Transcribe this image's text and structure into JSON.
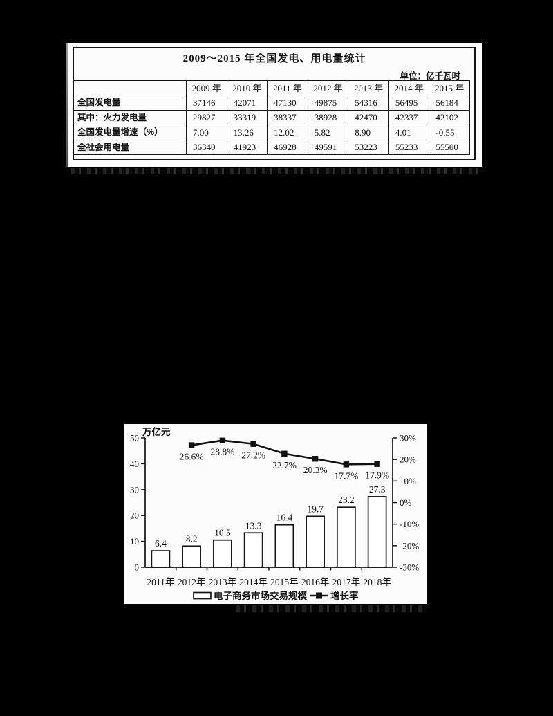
{
  "page": {
    "background": "#000000",
    "panel_color": "#fcfcfc",
    "ink": "#141414"
  },
  "chart_data": [
    {
      "type": "table",
      "title": "2009～2015 年全国发电、用电量统计",
      "unit_note": "单位：亿千瓦时",
      "columns": [
        "",
        "2009 年",
        "2010 年",
        "2011 年",
        "2012 年",
        "2013 年",
        "2014 年",
        "2015 年"
      ],
      "rows": [
        {
          "label": "全国发电量",
          "values": [
            "37146",
            "42071",
            "47130",
            "49875",
            "54316",
            "56495",
            "56184"
          ]
        },
        {
          "label": "其中：火力发电量",
          "values": [
            "29827",
            "33319",
            "38337",
            "38928",
            "42470",
            "42337",
            "42102"
          ]
        },
        {
          "label": "全国发电量增速（%）",
          "values": [
            "7.00",
            "13.26",
            "12.02",
            "5.82",
            "8.90",
            "4.01",
            "-0.55"
          ]
        },
        {
          "label": "全社会用电量",
          "values": [
            "36340",
            "41923",
            "46928",
            "49591",
            "53223",
            "55233",
            "55500"
          ]
        }
      ]
    },
    {
      "type": "combo_bar_line",
      "categories": [
        "2011年",
        "2012年",
        "2013年",
        "2014年",
        "2015年",
        "2016年",
        "2017年",
        "2018年"
      ],
      "series": [
        {
          "name": "电子商务市场交易规模",
          "chart": "bar",
          "unit": "万亿元",
          "values": [
            6.4,
            8.2,
            10.5,
            13.3,
            16.4,
            19.7,
            23.2,
            27.3
          ],
          "value_labels": [
            "6.4",
            "8.2",
            "10.5",
            "13.3",
            "16.4",
            "19.7",
            "23.2",
            "27.3"
          ]
        },
        {
          "name": "增长率",
          "chart": "line",
          "values": [
            null,
            26.6,
            28.8,
            27.2,
            22.7,
            20.3,
            17.7,
            17.9
          ],
          "point_labels": [
            null,
            "26.6%",
            "28.8%",
            "27.2%",
            "22.7%",
            "20.3%",
            "17.7%",
            "17.9%"
          ]
        }
      ],
      "left_axis": {
        "title": "万亿元",
        "min": 0,
        "max": 50,
        "step": 10,
        "tick_labels": [
          "0",
          "10",
          "20",
          "30",
          "40",
          "50"
        ]
      },
      "right_axis": {
        "min": -30,
        "max": 30,
        "step": 10,
        "tick_labels": [
          "-30%",
          "-20%",
          "-10%",
          "0%",
          "10%",
          "20%",
          "30%"
        ]
      },
      "legend": [
        {
          "label": "电子商务市场交易规模",
          "marker": "bar-swatch"
        },
        {
          "label": "增长率",
          "marker": "line-square"
        }
      ],
      "legend_position": "bottom",
      "grid": "off",
      "bar_color": "#ffffff",
      "line_color": "#111111"
    }
  ]
}
